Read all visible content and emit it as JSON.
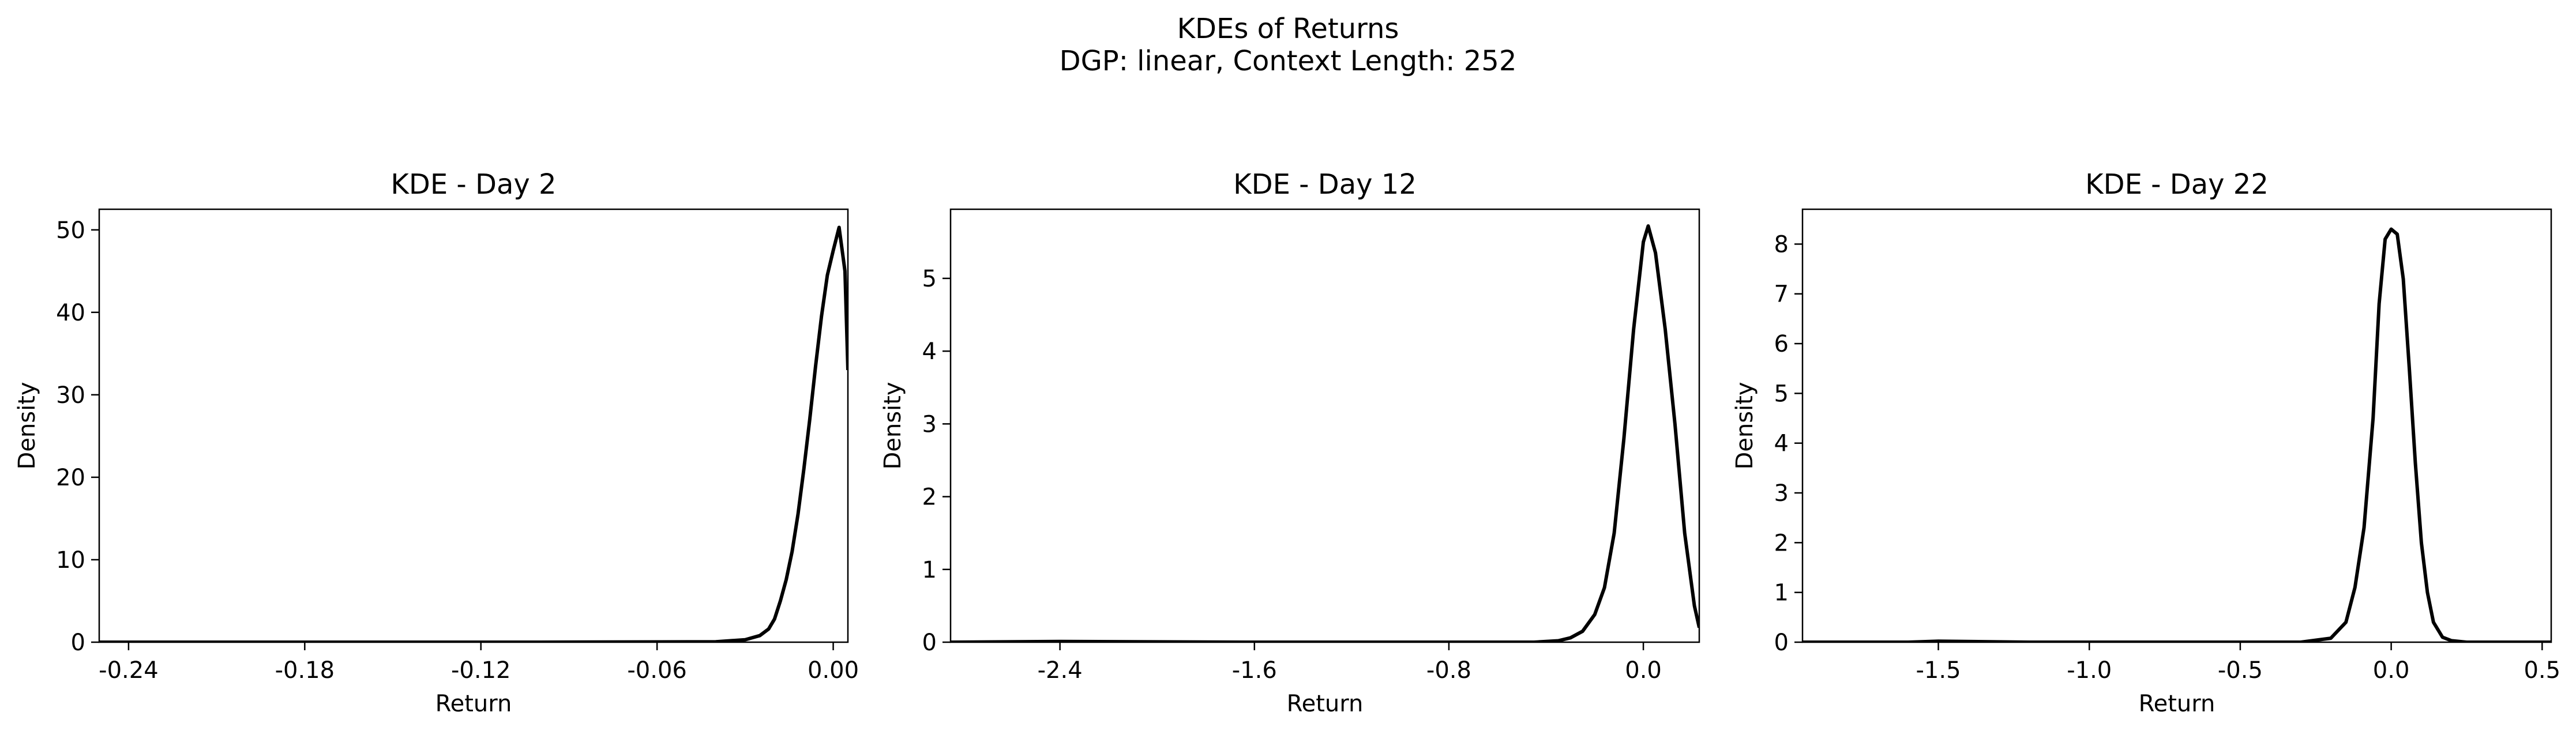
{
  "figure": {
    "title_line1": "KDEs of Returns",
    "title_line2": "DGP: linear, Context Length: 252"
  },
  "chart_data": [
    {
      "type": "line",
      "title": "KDE - Day 2",
      "xlabel": "Return",
      "ylabel": "Density",
      "xlim": [
        -0.25,
        0.005
      ],
      "ylim": [
        0,
        52.5
      ],
      "xticks": [
        -0.24,
        -0.18,
        -0.12,
        -0.06,
        0.0
      ],
      "xtick_labels": [
        "-0.24",
        "-0.18",
        "-0.12",
        "-0.06",
        "0.00"
      ],
      "yticks": [
        0,
        10,
        20,
        30,
        40,
        50
      ],
      "ytick_labels": [
        "0",
        "10",
        "20",
        "30",
        "40",
        "50"
      ],
      "grid": false,
      "color": "#000000",
      "series": [
        {
          "x": [
            -0.25,
            -0.1,
            -0.04,
            -0.03,
            -0.025,
            -0.022,
            -0.02,
            -0.018,
            -0.016,
            -0.014,
            -0.012,
            -0.01,
            -0.008,
            -0.006,
            -0.004,
            -0.002,
            0.0,
            0.002,
            0.004,
            0.005
          ],
          "y": [
            0,
            0,
            0.05,
            0.3,
            0.8,
            1.6,
            2.8,
            5.0,
            7.6,
            11.0,
            15.5,
            21.0,
            27.0,
            33.5,
            39.5,
            44.5,
            47.5,
            50.3,
            45.0,
            33.0
          ]
        }
      ]
    },
    {
      "type": "line",
      "title": "KDE - Day 12",
      "xlabel": "Return",
      "ylabel": "Density",
      "xlim": [
        -2.85,
        0.23
      ],
      "ylim": [
        0,
        5.95
      ],
      "xticks": [
        -2.4,
        -1.6,
        -0.8,
        0.0
      ],
      "xtick_labels": [
        "-2.4",
        "-1.6",
        "-0.8",
        "0.0"
      ],
      "yticks": [
        0,
        1,
        2,
        3,
        4,
        5
      ],
      "ytick_labels": [
        "0",
        "1",
        "2",
        "3",
        "4",
        "5"
      ],
      "grid": false,
      "color": "#000000",
      "series": [
        {
          "x": [
            -2.85,
            -2.4,
            -1.6,
            -0.8,
            -0.45,
            -0.35,
            -0.3,
            -0.25,
            -0.2,
            -0.16,
            -0.12,
            -0.08,
            -0.04,
            0.0,
            0.02,
            0.05,
            0.09,
            0.13,
            0.17,
            0.21,
            0.23
          ],
          "y": [
            0,
            0.01,
            0,
            0,
            0,
            0.02,
            0.06,
            0.15,
            0.38,
            0.75,
            1.5,
            2.8,
            4.3,
            5.5,
            5.72,
            5.35,
            4.3,
            3.0,
            1.5,
            0.5,
            0.2
          ]
        }
      ]
    },
    {
      "type": "line",
      "title": "KDE - Day 22",
      "xlabel": "Return",
      "ylabel": "Density",
      "xlim": [
        -1.95,
        0.53
      ],
      "ylim": [
        0,
        8.7
      ],
      "xticks": [
        -1.5,
        -1.0,
        -0.5,
        0.0,
        0.5
      ],
      "xtick_labels": [
        "-1.5",
        "-1.0",
        "-0.5",
        "0.0",
        "0.5"
      ],
      "yticks": [
        0,
        1,
        2,
        3,
        4,
        5,
        6,
        7,
        8
      ],
      "ytick_labels": [
        "0",
        "1",
        "2",
        "3",
        "4",
        "5",
        "6",
        "7",
        "8"
      ],
      "grid": false,
      "color": "#000000",
      "series": [
        {
          "x": [
            -1.95,
            -1.6,
            -1.5,
            -1.2,
            -0.3,
            -0.2,
            -0.15,
            -0.12,
            -0.09,
            -0.06,
            -0.04,
            -0.02,
            0.0,
            0.02,
            0.04,
            0.06,
            0.08,
            0.1,
            0.12,
            0.14,
            0.17,
            0.2,
            0.25,
            0.53
          ],
          "y": [
            0,
            0,
            0.02,
            0,
            0,
            0.08,
            0.4,
            1.1,
            2.3,
            4.5,
            6.8,
            8.1,
            8.3,
            8.2,
            7.3,
            5.5,
            3.6,
            2.0,
            1.0,
            0.4,
            0.1,
            0.03,
            0,
            0
          ]
        }
      ]
    }
  ]
}
